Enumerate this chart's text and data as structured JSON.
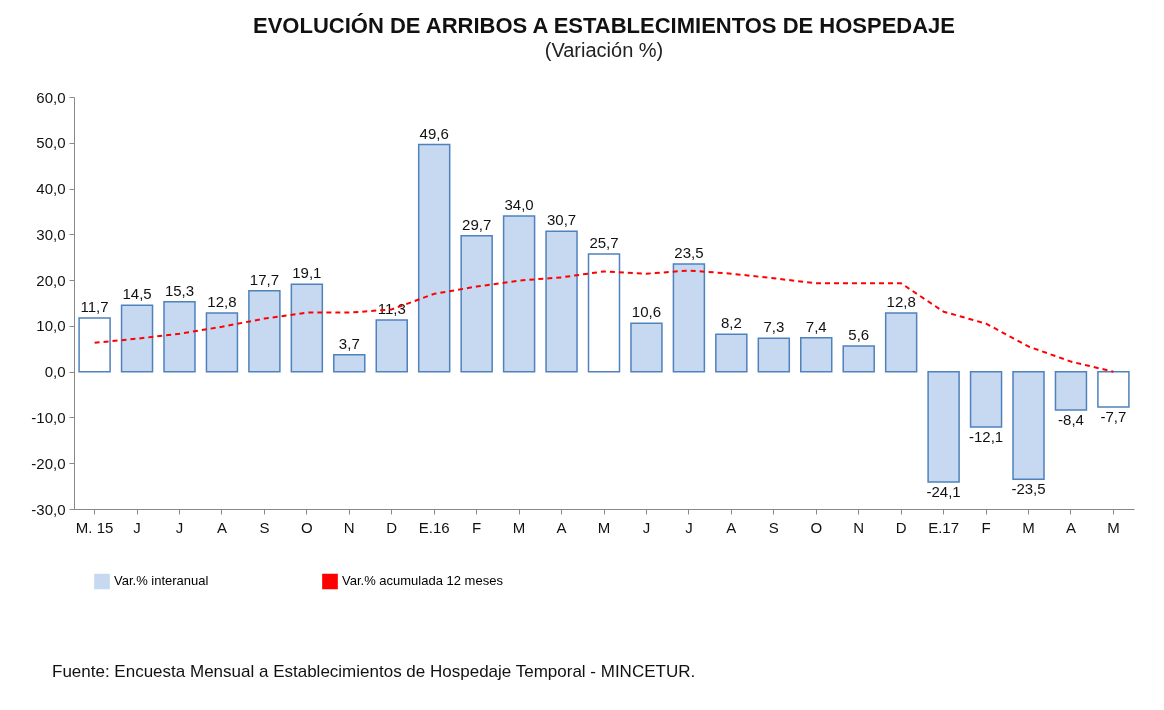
{
  "chart_data": {
    "type": "bar",
    "title": "EVOLUCIÓN DE ARRIBOS A ESTABLECIMIENTOS DE HOSPEDAJE",
    "subtitle": "(Variación %)",
    "categories": [
      "M. 15",
      "J",
      "J",
      "A",
      "S",
      "O",
      "N",
      "D",
      "E.16",
      "F",
      "M",
      "A",
      "M",
      "J",
      "J",
      "A",
      "S",
      "O",
      "N",
      "D",
      "E.17",
      "F",
      "M",
      "A",
      "M"
    ],
    "series": [
      {
        "name": "Var.% interanual",
        "color": "#c6d9f1",
        "colors": [
          "#ffffff",
          "#c6d9f1",
          "#c6d9f1",
          "#c6d9f1",
          "#c6d9f1",
          "#c6d9f1",
          "#c6d9f1",
          "#c6d9f1",
          "#c6d9f1",
          "#c6d9f1",
          "#c6d9f1",
          "#c6d9f1",
          "#ffffff",
          "#c6d9f1",
          "#c6d9f1",
          "#c6d9f1",
          "#c6d9f1",
          "#c6d9f1",
          "#c6d9f1",
          "#c6d9f1",
          "#c6d9f1",
          "#c6d9f1",
          "#c6d9f1",
          "#c6d9f1",
          "#ffffff"
        ],
        "values": [
          11.7,
          14.5,
          15.3,
          12.8,
          17.7,
          19.1,
          3.7,
          11.3,
          49.6,
          29.7,
          34.0,
          30.7,
          25.7,
          10.6,
          23.5,
          8.2,
          7.3,
          7.4,
          5.6,
          12.8,
          -24.1,
          -12.1,
          -23.5,
          -8.4,
          -7.7
        ],
        "value_labels": [
          "11,7",
          "14,5",
          "15,3",
          "12,8",
          "17,7",
          "19,1",
          "3,7",
          "11,3",
          "49,6",
          "29,7",
          "34,0",
          "30,7",
          "25,7",
          "10,6",
          "23,5",
          "8,2",
          "7,3",
          "7,4",
          "5,6",
          "12,8",
          "-24,1",
          "-12,1",
          "-23,5",
          "-8,4",
          "-7,7"
        ]
      },
      {
        "name": "Var.% acumulada 12 meses",
        "type": "line",
        "color": "#ff0000",
        "line_style": "dashed",
        "marker": "none",
        "values": [
          6.3,
          7.2,
          8.3,
          9.8,
          11.6,
          12.9,
          12.9,
          13.6,
          17.0,
          18.6,
          19.9,
          20.6,
          21.9,
          21.4,
          22.1,
          21.4,
          20.4,
          19.3,
          19.3,
          19.3,
          13.1,
          10.5,
          5.5,
          2.2,
          0.0
        ]
      }
    ],
    "ylim": [
      -30,
      60
    ],
    "yticks": [
      {
        "value": -30,
        "label": "-30,0"
      },
      {
        "value": -20,
        "label": "-20,0"
      },
      {
        "value": -10,
        "label": "-10,0"
      },
      {
        "value": 0,
        "label": "0,0"
      },
      {
        "value": 10,
        "label": "10,0"
      },
      {
        "value": 20,
        "label": "20,0"
      },
      {
        "value": 30,
        "label": "30,0"
      },
      {
        "value": 40,
        "label": "40,0"
      },
      {
        "value": 50,
        "label": "50,0"
      },
      {
        "value": 60,
        "label": "60,0"
      }
    ],
    "grid": false,
    "legend": "bottom",
    "annotations": [
      "Fuente: Encuesta Mensual a Establecimientos de Hospedaje Temporal - MINCETUR."
    ]
  }
}
